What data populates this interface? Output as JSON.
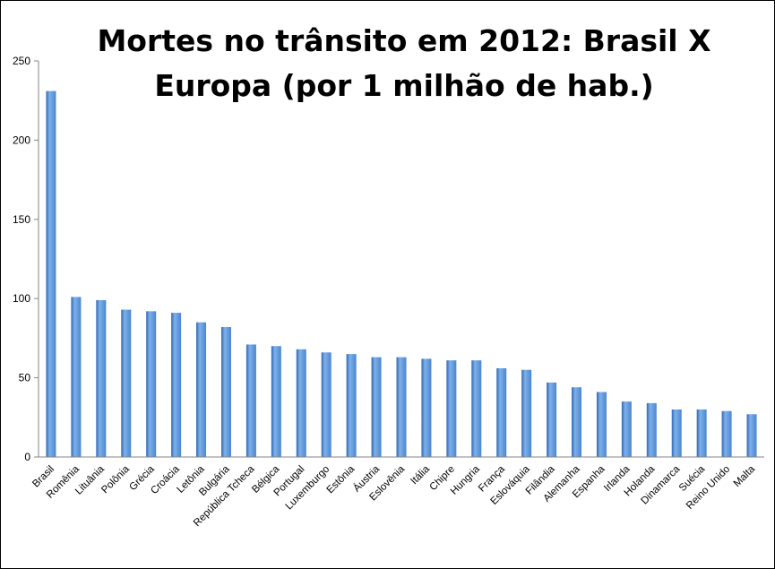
{
  "chart_data": {
    "type": "bar",
    "title_lines": [
      "Mortes no trânsito em 2012: Brasil X",
      "Europa (por 1 milhão de hab.)"
    ],
    "xlabel": "",
    "ylabel": "",
    "ylim": [
      0,
      250
    ],
    "yticks": [
      0,
      50,
      100,
      150,
      200,
      250
    ],
    "grid": false,
    "legend": "none",
    "bar_color": "#4a86d0",
    "bar_color_light": "#7fb1ea",
    "bar_color_dark": "#2f67b3",
    "categories": [
      "Brasil",
      "Romênia",
      "Lituânia",
      "Polônia",
      "Grécia",
      "Croácia",
      "Letônia",
      "Bulgária",
      "República Tcheca",
      "Bélgica",
      "Portugal",
      "Luxemburgo",
      "Estônia",
      "Áustria",
      "Eslovênia",
      "Itália",
      "Chipre",
      "Hungria",
      "França",
      "Eslováquia",
      "Filândia",
      "Alemanha",
      "Espanha",
      "Irlanda",
      "Holanda",
      "Dinamarca",
      "Suécia",
      "Reino Unido",
      "Malta"
    ],
    "values": [
      231,
      101,
      99,
      93,
      92,
      91,
      85,
      82,
      71,
      70,
      68,
      66,
      65,
      63,
      63,
      62,
      61,
      61,
      56,
      55,
      47,
      44,
      41,
      35,
      34,
      30,
      30,
      29,
      27
    ]
  }
}
